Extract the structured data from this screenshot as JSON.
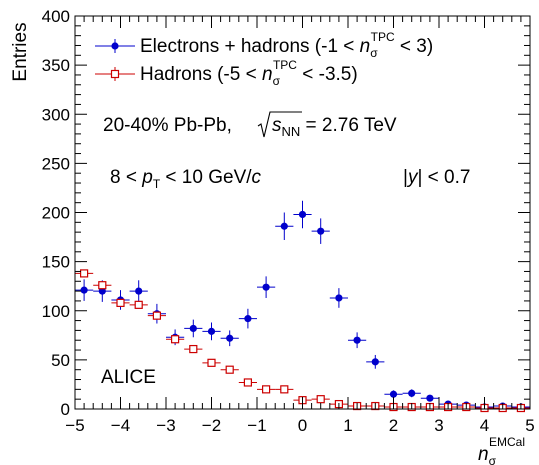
{
  "chart_data": {
    "type": "scatter",
    "ylabel": "Entries",
    "xlabel": {
      "base": "n",
      "sub": "σ",
      "sup": "EMCal"
    },
    "xlim": [
      -5,
      5
    ],
    "ylim": [
      0,
      400
    ],
    "grid": false,
    "legend_position": "top-left",
    "x_ticks": [
      -5,
      -4,
      -3,
      -2,
      -1,
      0,
      1,
      2,
      3,
      4,
      5
    ],
    "x_tick_labels": [
      "−5",
      "−4",
      "−3",
      "−2",
      "−1",
      "0",
      "1",
      "2",
      "3",
      "4",
      "5"
    ],
    "y_ticks": [
      0,
      50,
      100,
      150,
      200,
      250,
      300,
      350,
      400
    ],
    "y_tick_labels": [
      "0",
      "50",
      "100",
      "150",
      "200",
      "250",
      "300",
      "350",
      "400"
    ],
    "series": [
      {
        "legend": {
          "pre": "Electrons + hadrons (-1 < ",
          "base": "n",
          "sub": "σ",
          "sup": "TPC",
          "post": " < 3)"
        },
        "color": "#0000cc",
        "marker": "filled-circle",
        "x": [
          -4.8,
          -4.4,
          -4.0,
          -3.6,
          -3.2,
          -2.8,
          -2.4,
          -2.0,
          -1.6,
          -1.2,
          -0.8,
          -0.4,
          0.0,
          0.4,
          0.8,
          1.2,
          1.6,
          2.0,
          2.4,
          2.8,
          3.2,
          3.6,
          4.0,
          4.4,
          4.8
        ],
        "y": [
          121,
          120,
          111,
          120,
          97,
          73,
          82,
          79,
          72,
          92,
          124,
          186,
          198,
          181,
          113,
          70,
          48,
          15,
          16,
          11,
          5,
          4,
          2,
          3,
          2
        ],
        "yerr": [
          11,
          11,
          10,
          11,
          10,
          8,
          9,
          9,
          8,
          10,
          11,
          14,
          14,
          13,
          10,
          8,
          7,
          4,
          4,
          3,
          2,
          2,
          1.5,
          1.7,
          1.5
        ]
      },
      {
        "legend": {
          "pre": "Hadrons (-5 < ",
          "base": "n",
          "sub": "σ",
          "sup": "TPC",
          "post": " < -3.5)"
        },
        "color": "#cc0000",
        "marker": "open-square",
        "x": [
          -4.8,
          -4.4,
          -4.0,
          -3.6,
          -3.2,
          -2.8,
          -2.4,
          -2.0,
          -1.6,
          -1.2,
          -0.8,
          -0.4,
          0.0,
          0.4,
          0.8,
          1.2,
          1.6,
          2.0,
          2.4,
          2.8,
          3.2,
          3.6,
          4.0,
          4.4,
          4.8
        ],
        "y": [
          138,
          126,
          108,
          106,
          95,
          71,
          61,
          47,
          40,
          27,
          20,
          20,
          9,
          10,
          5,
          3,
          3,
          2,
          2,
          2,
          2,
          2,
          1,
          1,
          1
        ],
        "yerr": [
          4,
          4,
          3.5,
          3.5,
          3,
          3,
          2.5,
          2.5,
          2.5,
          2,
          1.5,
          1.5,
          1.2,
          1.2,
          1,
          0.8,
          0.8,
          0.6,
          0.6,
          0.6,
          0.6,
          0.6,
          0.4,
          0.4,
          0.4
        ]
      }
    ],
    "annotations": {
      "system": {
        "pre": "20-40% Pb-Pb, ",
        "sqrt_base": "s",
        "sqrt_sub": "NN",
        "post": " = 2.76 TeV"
      },
      "pt_range": {
        "pre": "8 < ",
        "base": "p",
        "sub": "T",
        "mid": " < 10 GeV/",
        "italic": "c"
      },
      "rapidity": {
        "open": "|",
        "italic": "y",
        "close": "| < 0.7"
      },
      "experiment": "ALICE"
    }
  }
}
